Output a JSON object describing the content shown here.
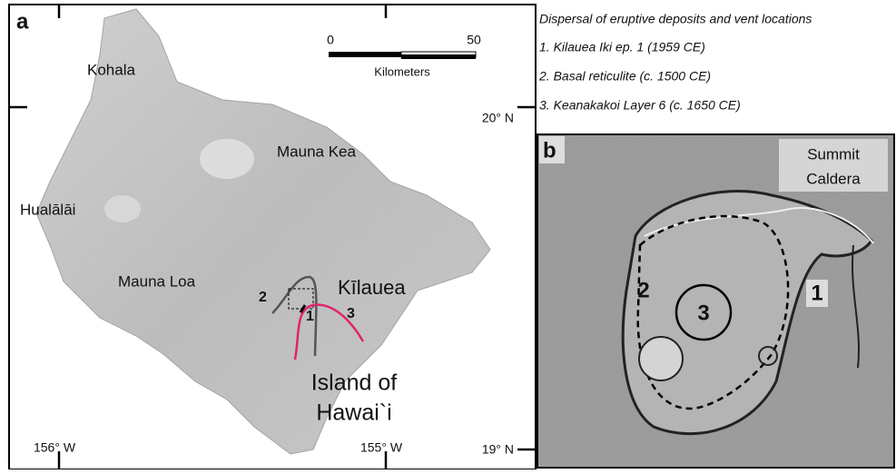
{
  "panel_a": {
    "label": "a",
    "scale_bar": {
      "start": "0",
      "end": "50",
      "unit": "Kilometers"
    },
    "places": [
      "Kohala",
      "Mauna Kea",
      "Hualālāi",
      "Mauna Loa",
      "Kīlauea"
    ],
    "vent_labels": [
      "2",
      "1",
      "3"
    ],
    "island_name": [
      "Island of",
      "Hawai`i"
    ],
    "latitude_labels": [
      "20° N",
      "19° N"
    ],
    "longitude_labels": [
      "156° W",
      "155° W"
    ]
  },
  "legend": {
    "title": "Dispersal of eruptive deposits and vent locations",
    "items": [
      "1. Kilauea Iki ep. 1 (1959 CE)",
      "2. Basal reticulite (c. 1500 CE)",
      "3. Keanakakoi Layer 6 (c. 1650 CE)"
    ]
  },
  "panel_b": {
    "label": "b",
    "caption": [
      "Summit",
      "Caldera"
    ],
    "vent_labels": [
      "2",
      "3",
      "1"
    ]
  }
}
